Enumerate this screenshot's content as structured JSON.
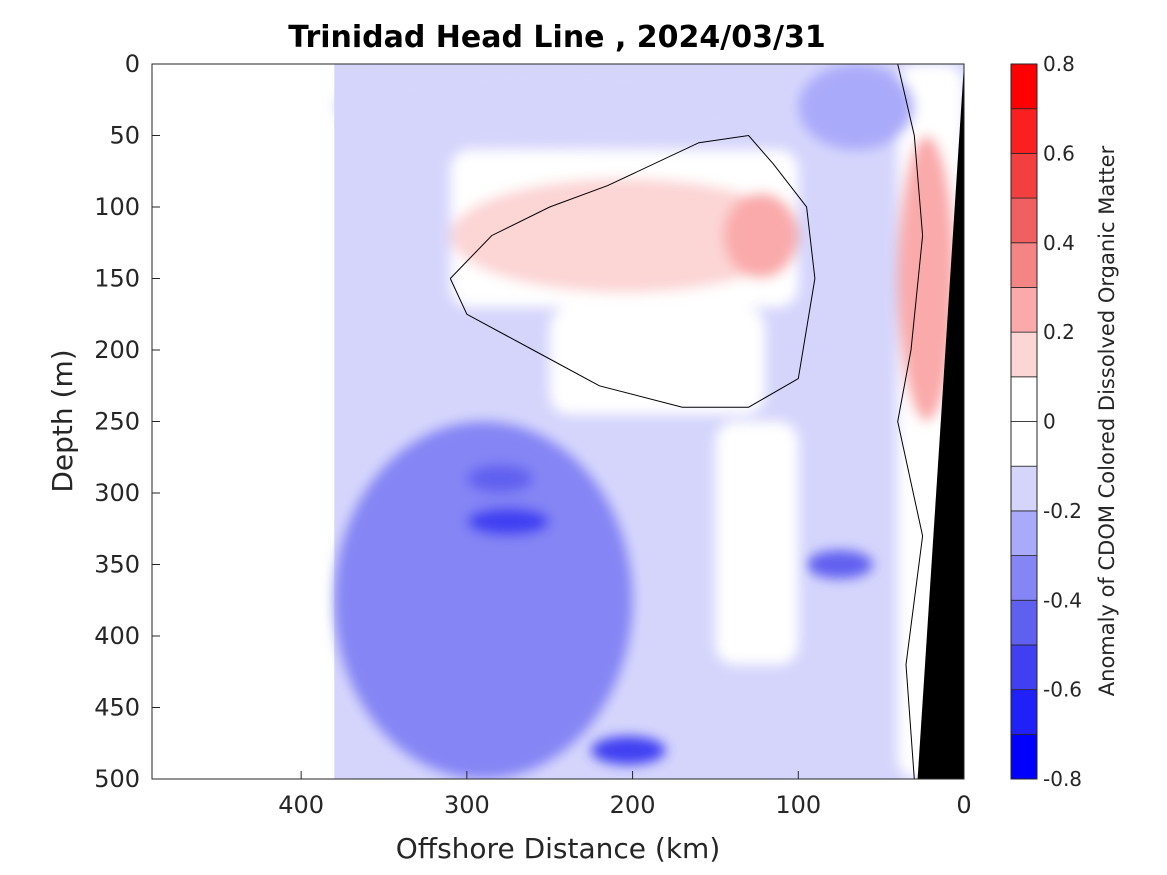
{
  "chart_data": {
    "type": "heatmap",
    "title": "Trinidad Head Line , 2024/03/31",
    "xlabel": "Offshore Distance (km)",
    "ylabel": "Depth (m)",
    "colorbar_label": "Anomaly of CDOM Colored Dissolved Organic Matter",
    "xlim": [
      490,
      0
    ],
    "ylim": [
      0,
      500
    ],
    "x_ticks": [
      400,
      300,
      200,
      100,
      0
    ],
    "y_ticks": [
      0,
      50,
      100,
      150,
      200,
      250,
      300,
      350,
      400,
      450,
      500
    ],
    "colorbar_range": [
      -0.8,
      0.8
    ],
    "colorbar_ticks": [
      0.8,
      0.6,
      0.4,
      0.2,
      0,
      -0.2,
      -0.4,
      -0.6,
      -0.8
    ],
    "colorbar_levels": [
      {
        "from": -0.8,
        "to": -0.7,
        "color": "#0000ff"
      },
      {
        "from": -0.7,
        "to": -0.6,
        "color": "#2020f8"
      },
      {
        "from": -0.6,
        "to": -0.5,
        "color": "#4040f2"
      },
      {
        "from": -0.5,
        "to": -0.4,
        "color": "#6060f0"
      },
      {
        "from": -0.4,
        "to": -0.3,
        "color": "#8585f5"
      },
      {
        "from": -0.3,
        "to": -0.2,
        "color": "#aaaafa"
      },
      {
        "from": -0.2,
        "to": -0.1,
        "color": "#d5d5fc"
      },
      {
        "from": -0.1,
        "to": 0.0,
        "color": "#ffffff"
      },
      {
        "from": 0.0,
        "to": 0.1,
        "color": "#ffffff"
      },
      {
        "from": 0.1,
        "to": 0.2,
        "color": "#fcd5d5"
      },
      {
        "from": 0.2,
        "to": 0.3,
        "color": "#faaaaa"
      },
      {
        "from": 0.3,
        "to": 0.4,
        "color": "#f58585"
      },
      {
        "from": 0.4,
        "to": 0.5,
        "color": "#f06060"
      },
      {
        "from": 0.5,
        "to": 0.6,
        "color": "#f24040"
      },
      {
        "from": 0.6,
        "to": 0.7,
        "color": "#f82020"
      },
      {
        "from": 0.7,
        "to": 0.8,
        "color": "#ff0000"
      }
    ],
    "data_extent_km": [
      380,
      0
    ],
    "bathymetry_color": "#000000",
    "features": [
      {
        "desc": "negative anomaly near surface",
        "x_km": [
          380,
          120
        ],
        "depth_m": [
          0,
          60
        ],
        "value": -0.15
      },
      {
        "desc": "positive anomaly tongue",
        "x_km": [
          310,
          100
        ],
        "depth_m": [
          80,
          160
        ],
        "value": 0.15
      },
      {
        "desc": "positive core",
        "x_km": [
          145,
          100
        ],
        "depth_m": [
          90,
          150
        ],
        "value": 0.25
      },
      {
        "desc": "strong negative band",
        "x_km": [
          380,
          200
        ],
        "depth_m": [
          250,
          500
        ],
        "value": -0.35
      },
      {
        "desc": "negative core",
        "x_km": [
          300,
          250
        ],
        "depth_m": [
          310,
          330
        ],
        "value": -0.55
      },
      {
        "desc": "negative core",
        "x_km": [
          300,
          260
        ],
        "depth_m": [
          280,
          300
        ],
        "value": -0.5
      },
      {
        "desc": "negative core",
        "x_km": [
          225,
          180
        ],
        "depth_m": [
          470,
          490
        ],
        "value": -0.55
      },
      {
        "desc": "negative core",
        "x_km": [
          95,
          55
        ],
        "depth_m": [
          340,
          360
        ],
        "value": -0.5
      },
      {
        "desc": "positive near-shore",
        "x_km": [
          40,
          5
        ],
        "depth_m": [
          50,
          250
        ],
        "value": 0.25
      },
      {
        "desc": "negative offshore upper",
        "x_km": [
          100,
          30
        ],
        "depth_m": [
          0,
          60
        ],
        "value": -0.3
      }
    ]
  }
}
